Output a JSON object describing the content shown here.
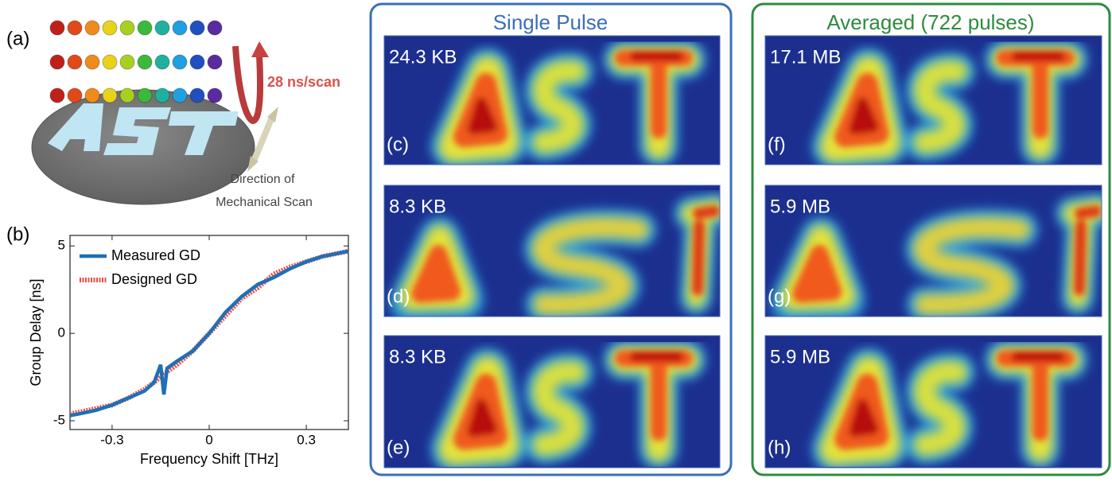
{
  "chart_data": {
    "type": "line",
    "x_label": "Frequency Shift [THz]",
    "y_label": "Group Delay [ns]",
    "x": [
      -0.43,
      -0.4,
      -0.35,
      -0.3,
      -0.25,
      -0.2,
      -0.17,
      -0.15,
      -0.14,
      -0.13,
      -0.1,
      -0.05,
      0,
      0.05,
      0.1,
      0.15,
      0.2,
      0.25,
      0.3,
      0.35,
      0.43
    ],
    "series": [
      {
        "name": "Measured GD",
        "color": "#1f6fb5",
        "values": [
          -4.7,
          -4.6,
          -4.4,
          -4.1,
          -3.7,
          -3.3,
          -2.8,
          -1.8,
          -3.5,
          -2.0,
          -1.6,
          -1.0,
          0,
          1.2,
          2.1,
          2.8,
          3.2,
          3.7,
          4.1,
          4.4,
          4.7
        ]
      },
      {
        "name": "Designed GD",
        "color": "#e8504a",
        "values": [
          -4.6,
          -4.5,
          -4.3,
          -4.1,
          -3.7,
          -3.2,
          -2.8,
          -2.5,
          -2.3,
          -2.2,
          -1.8,
          -1.0,
          0,
          1.0,
          2.0,
          2.6,
          3.4,
          3.8,
          4.1,
          4.4,
          4.7
        ]
      }
    ],
    "xlim": [
      -0.43,
      0.43
    ],
    "xticks": [
      -0.3,
      0,
      0.3
    ],
    "ylim": [
      -5.5,
      5.6
    ],
    "yticks": [
      -5,
      0,
      5
    ],
    "legend": "upper-left"
  },
  "panel_a": {
    "label": "(a)",
    "speed": "28 ns/scan",
    "direction": [
      "Direction of",
      "Mechanical Scan"
    ]
  },
  "panel_b": {
    "label": "(b)"
  },
  "single_pulse": {
    "title": "Single Pulse",
    "images": [
      {
        "size": "24.3 KB",
        "label": "(c)"
      },
      {
        "size": "8.3 KB",
        "label": "(d)"
      },
      {
        "size": "8.3 KB",
        "label": "(e)"
      }
    ]
  },
  "averaged": {
    "title": "Averaged (722 pulses)",
    "images": [
      {
        "size": "17.1 MB",
        "label": "(f)"
      },
      {
        "size": "5.9 MB",
        "label": "(g)"
      },
      {
        "size": "5.9 MB",
        "label": "(h)"
      }
    ]
  }
}
